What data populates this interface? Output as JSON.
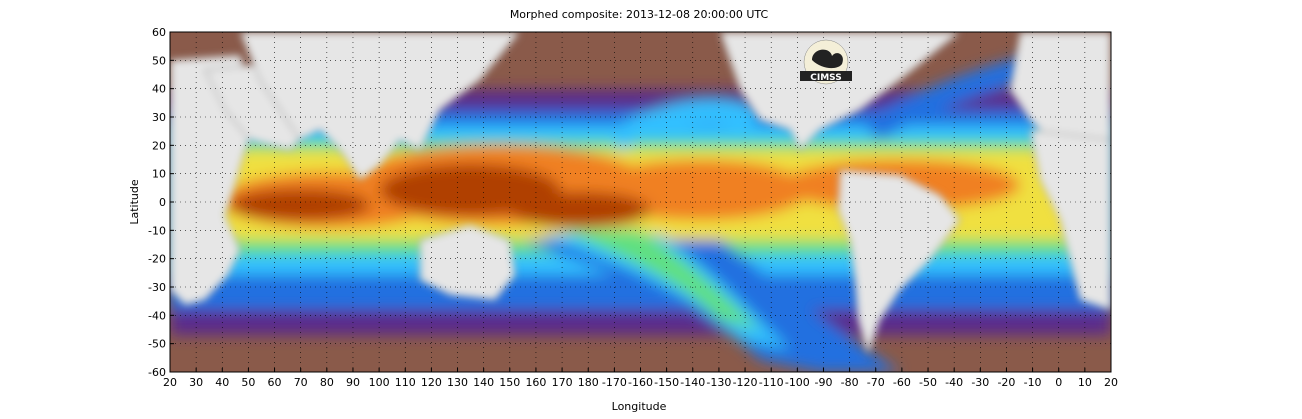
{
  "title": "Morphed composite: 2013-12-08 20:00:00 UTC",
  "chart_data": {
    "type": "heatmap",
    "title": "Morphed composite: 2013-12-08 20:00:00 UTC",
    "xlabel": "Longitude",
    "ylabel": "Latitude",
    "x_ticks": [
      "20",
      "30",
      "40",
      "50",
      "60",
      "70",
      "80",
      "90",
      "100",
      "110",
      "120",
      "130",
      "140",
      "150",
      "160",
      "170",
      "180",
      "-170",
      "-160",
      "-150",
      "-140",
      "-130",
      "-120",
      "-110",
      "-100",
      "-90",
      "-80",
      "-70",
      "-60",
      "-50",
      "-40",
      "-30",
      "-20",
      "-10",
      "0",
      "10",
      "20"
    ],
    "y_ticks": [
      "60",
      "50",
      "40",
      "30",
      "20",
      "10",
      "0",
      "-10",
      "-20",
      "-30",
      "-40",
      "-50",
      "-60"
    ],
    "x_range": [
      20,
      380
    ],
    "y_range": [
      -60,
      60
    ],
    "grid": "dotted",
    "logo_text": "CIMSS",
    "colors": {
      "land": "#e6e6e6",
      "dry": "#8a5a4a",
      "low": "#5a2c8c",
      "mid_low": "#2070e0",
      "mid": "#30c0ff",
      "mid_high": "#60e080",
      "high": "#f0e040",
      "very_high": "#f08020",
      "max": "#b04000"
    }
  }
}
